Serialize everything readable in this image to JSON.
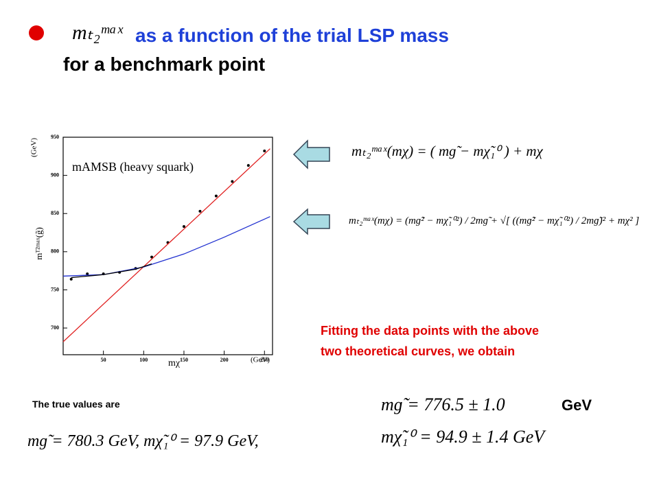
{
  "title": {
    "formula": "mₜ₂ᵐᵃˣ",
    "text": "as a function of the trial LSP mass",
    "line2": "for a benchmark point"
  },
  "chart_data": {
    "type": "scatter",
    "annotation": "mAMSB (heavy squark)",
    "x_label": "mχ",
    "x_unit": "(GeV)",
    "y_label": "mᵀ²ᵐᵃˣ(g̃)",
    "y_unit": "(GeV)",
    "xlim": [
      0,
      260
    ],
    "ylim": [
      665,
      950
    ],
    "xticks": [
      50,
      100,
      150,
      200,
      250
    ],
    "yticks": [
      700,
      750,
      800,
      850,
      900,
      950
    ],
    "series": [
      {
        "style": "markers",
        "color": "#000000",
        "x": [
          10,
          30,
          50,
          70,
          90,
          110,
          130,
          150,
          170,
          190,
          210,
          230,
          250
        ],
        "values": [
          764,
          771,
          771,
          773,
          778,
          793,
          812,
          833,
          853,
          873,
          892,
          913,
          932
        ]
      },
      {
        "style": "line",
        "color": "#e02020",
        "x": [
          0,
          257
        ],
        "values": [
          682,
          935
        ]
      },
      {
        "style": "line",
        "color": "#2030d0",
        "x": [
          0,
          50,
          100,
          150,
          200,
          257
        ],
        "values": [
          768,
          770,
          780,
          797,
          819,
          846
        ]
      },
      {
        "style": "line",
        "color": "#000000",
        "x": [
          10,
          50,
          90,
          110
        ],
        "values": [
          766,
          770,
          777,
          784
        ]
      }
    ]
  },
  "formulas": [
    "mₜ₂ᵐᵃˣ(mχ)  =  ( mɡ̃ − mχ̃₁⁰ ) + mχ",
    "mₜ₂ᵐᵃˣ(mχ) = (mɡ̃² − mχ̃₁⁰²) / 2mɡ̃ + √[ ((mɡ̃² − mχ̃₁⁰²) / 2mɡ̃)² + mχ² ]"
  ],
  "fit_note": [
    "Fitting the data points with the above",
    "two theoretical curves, we obtain"
  ],
  "true_values_label": "The true values are",
  "true_values": "mɡ̃ = 780.3 GeV,  mχ̃₁⁰ = 97.9 GeV,",
  "results": [
    "mɡ̃ = 776.5 ± 1.0",
    "GeV",
    "mχ̃₁⁰ = 94.9 ± 1.4 GeV"
  ]
}
